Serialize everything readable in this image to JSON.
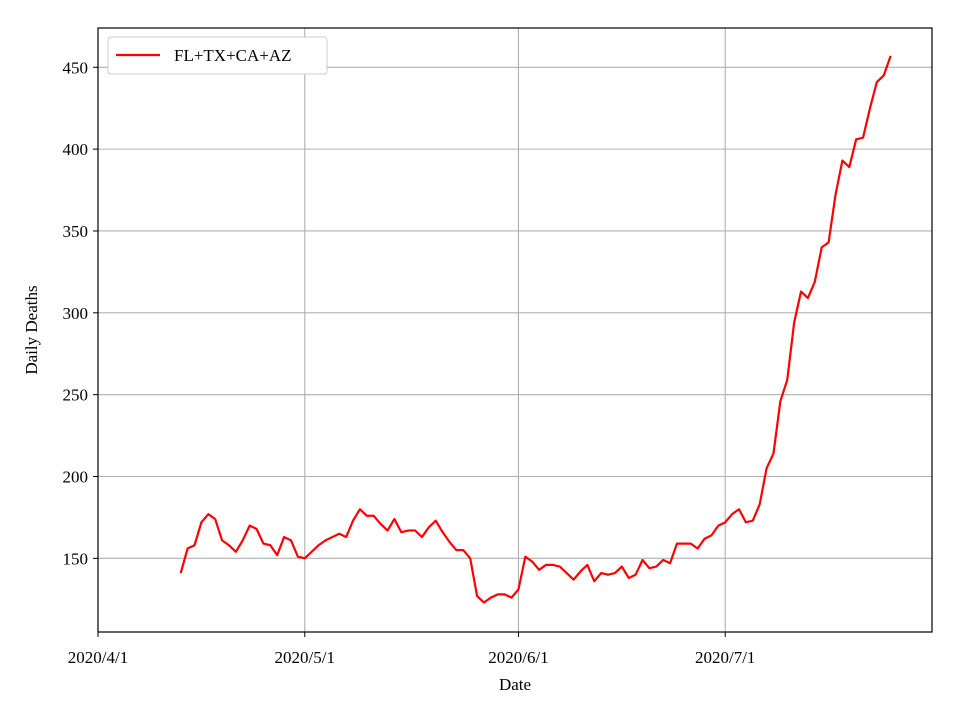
{
  "chart_data": {
    "type": "line",
    "title": "",
    "xlabel": "Date",
    "ylabel": "Daily Deaths",
    "x_range": [
      "2020-04-01",
      "2020-07-31"
    ],
    "ylim": [
      105,
      474
    ],
    "grid": true,
    "legend": {
      "position": "top-left",
      "entries": [
        "FL+TX+CA+AZ"
      ]
    },
    "x_ticks": [
      {
        "date": "2020-04-01",
        "label": "2020/4/1"
      },
      {
        "date": "2020-05-01",
        "label": "2020/5/1"
      },
      {
        "date": "2020-06-01",
        "label": "2020/6/1"
      },
      {
        "date": "2020-07-01",
        "label": "2020/7/1"
      }
    ],
    "y_ticks": [
      {
        "value": 150,
        "label": "150"
      },
      {
        "value": 200,
        "label": "200"
      },
      {
        "value": 250,
        "label": "250"
      },
      {
        "value": 300,
        "label": "300"
      },
      {
        "value": 350,
        "label": "350"
      },
      {
        "value": 400,
        "label": "400"
      },
      {
        "value": 450,
        "label": "450"
      }
    ],
    "series": [
      {
        "name": "FL+TX+CA+AZ",
        "color": "#ff0000",
        "points": [
          [
            "2020-04-13",
            141
          ],
          [
            "2020-04-14",
            156
          ],
          [
            "2020-04-15",
            158
          ],
          [
            "2020-04-16",
            172
          ],
          [
            "2020-04-17",
            177
          ],
          [
            "2020-04-18",
            174
          ],
          [
            "2020-04-19",
            161
          ],
          [
            "2020-04-20",
            158
          ],
          [
            "2020-04-21",
            154
          ],
          [
            "2020-04-22",
            161
          ],
          [
            "2020-04-23",
            170
          ],
          [
            "2020-04-24",
            168
          ],
          [
            "2020-04-25",
            159
          ],
          [
            "2020-04-26",
            158
          ],
          [
            "2020-04-27",
            152
          ],
          [
            "2020-04-28",
            163
          ],
          [
            "2020-04-29",
            161
          ],
          [
            "2020-04-30",
            151
          ],
          [
            "2020-05-01",
            150
          ],
          [
            "2020-05-02",
            154
          ],
          [
            "2020-05-03",
            158
          ],
          [
            "2020-05-04",
            161
          ],
          [
            "2020-05-05",
            163
          ],
          [
            "2020-05-06",
            165
          ],
          [
            "2020-05-07",
            163
          ],
          [
            "2020-05-08",
            173
          ],
          [
            "2020-05-09",
            180
          ],
          [
            "2020-05-10",
            176
          ],
          [
            "2020-05-11",
            176
          ],
          [
            "2020-05-12",
            171
          ],
          [
            "2020-05-13",
            167
          ],
          [
            "2020-05-14",
            174
          ],
          [
            "2020-05-15",
            166
          ],
          [
            "2020-05-16",
            167
          ],
          [
            "2020-05-17",
            167
          ],
          [
            "2020-05-18",
            163
          ],
          [
            "2020-05-19",
            169
          ],
          [
            "2020-05-20",
            173
          ],
          [
            "2020-05-21",
            166
          ],
          [
            "2020-05-22",
            160
          ],
          [
            "2020-05-23",
            155
          ],
          [
            "2020-05-24",
            155
          ],
          [
            "2020-05-25",
            150
          ],
          [
            "2020-05-26",
            127
          ],
          [
            "2020-05-27",
            123
          ],
          [
            "2020-05-28",
            126
          ],
          [
            "2020-05-29",
            128
          ],
          [
            "2020-05-30",
            128
          ],
          [
            "2020-05-31",
            126
          ],
          [
            "2020-06-01",
            131
          ],
          [
            "2020-06-02",
            151
          ],
          [
            "2020-06-03",
            148
          ],
          [
            "2020-06-04",
            143
          ],
          [
            "2020-06-05",
            146
          ],
          [
            "2020-06-06",
            146
          ],
          [
            "2020-06-07",
            145
          ],
          [
            "2020-06-08",
            141
          ],
          [
            "2020-06-09",
            137
          ],
          [
            "2020-06-10",
            142
          ],
          [
            "2020-06-11",
            146
          ],
          [
            "2020-06-12",
            136
          ],
          [
            "2020-06-13",
            141
          ],
          [
            "2020-06-14",
            140
          ],
          [
            "2020-06-15",
            141
          ],
          [
            "2020-06-16",
            145
          ],
          [
            "2020-06-17",
            138
          ],
          [
            "2020-06-18",
            140
          ],
          [
            "2020-06-19",
            149
          ],
          [
            "2020-06-20",
            144
          ],
          [
            "2020-06-21",
            145
          ],
          [
            "2020-06-22",
            149
          ],
          [
            "2020-06-23",
            147
          ],
          [
            "2020-06-24",
            159
          ],
          [
            "2020-06-25",
            159
          ],
          [
            "2020-06-26",
            159
          ],
          [
            "2020-06-27",
            156
          ],
          [
            "2020-06-28",
            162
          ],
          [
            "2020-06-29",
            164
          ],
          [
            "2020-06-30",
            170
          ],
          [
            "2020-07-01",
            172
          ],
          [
            "2020-07-02",
            177
          ],
          [
            "2020-07-03",
            180
          ],
          [
            "2020-07-04",
            172
          ],
          [
            "2020-07-05",
            173
          ],
          [
            "2020-07-06",
            183
          ],
          [
            "2020-07-07",
            205
          ],
          [
            "2020-07-08",
            214
          ],
          [
            "2020-07-09",
            246
          ],
          [
            "2020-07-10",
            259
          ],
          [
            "2020-07-11",
            294
          ],
          [
            "2020-07-12",
            313
          ],
          [
            "2020-07-13",
            309
          ],
          [
            "2020-07-14",
            319
          ],
          [
            "2020-07-15",
            340
          ],
          [
            "2020-07-16",
            343
          ],
          [
            "2020-07-17",
            372
          ],
          [
            "2020-07-18",
            393
          ],
          [
            "2020-07-19",
            389
          ],
          [
            "2020-07-20",
            406
          ],
          [
            "2020-07-21",
            407
          ],
          [
            "2020-07-22",
            425
          ],
          [
            "2020-07-23",
            441
          ],
          [
            "2020-07-24",
            445
          ],
          [
            "2020-07-25",
            457
          ]
        ]
      }
    ]
  }
}
